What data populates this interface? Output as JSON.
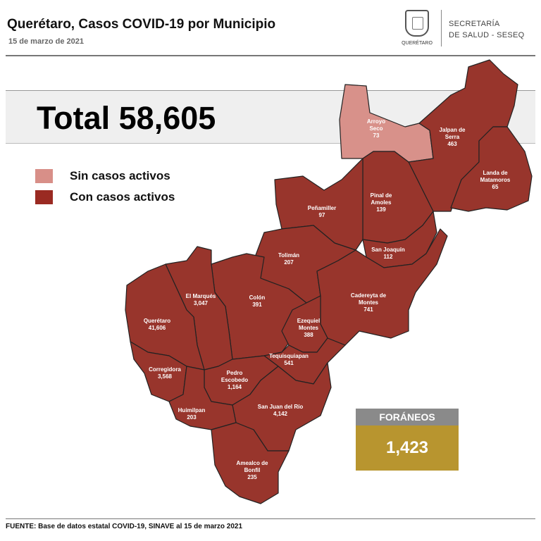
{
  "header": {
    "title": "Querétaro, Casos COVID-19 por Municipio",
    "date": "15 de marzo de 2021",
    "logo_text": "QUERÉTARO",
    "secretaria_line1": "SECRETARÍA",
    "secretaria_line2": "DE SALUD - SESEQ"
  },
  "total": "Total 58,605",
  "legend": [
    {
      "label": "Sin casos activos",
      "color": "#d88f88"
    },
    {
      "label": "Con casos activos",
      "color": "#9a2a22"
    }
  ],
  "colors": {
    "active": "#98352c",
    "inactive": "#d8918a",
    "border": "#222222",
    "foraneos_header": "#8a8a8a",
    "foraneos_value": "#b8952f"
  },
  "municipios": [
    {
      "name": "Arroyo Seco",
      "cases": "73",
      "active": false
    },
    {
      "name": "Jalpan de Serra",
      "cases": "463",
      "active": true
    },
    {
      "name": "Landa de Matamoros",
      "cases": "65",
      "active": true
    },
    {
      "name": "Pinal de Amoles",
      "cases": "139",
      "active": true
    },
    {
      "name": "Peñamiller",
      "cases": "97",
      "active": true
    },
    {
      "name": "Tolimán",
      "cases": "207",
      "active": true
    },
    {
      "name": "San Joaquín",
      "cases": "112",
      "active": true
    },
    {
      "name": "Cadereyta de Montes",
      "cases": "741",
      "active": true
    },
    {
      "name": "Colón",
      "cases": "391",
      "active": true
    },
    {
      "name": "El Marqués",
      "cases": "3,047",
      "active": true
    },
    {
      "name": "Querétaro",
      "cases": "41,606",
      "active": true
    },
    {
      "name": "Corregidora",
      "cases": "3,568",
      "active": true
    },
    {
      "name": "Ezequiel Montes",
      "cases": "388",
      "active": true
    },
    {
      "name": "Tequisquiapan",
      "cases": "541",
      "active": true
    },
    {
      "name": "Pedro Escobedo",
      "cases": "1,164",
      "active": true
    },
    {
      "name": "San Juan del Río",
      "cases": "4,142",
      "active": true
    },
    {
      "name": "Huimilpan",
      "cases": "203",
      "active": true
    },
    {
      "name": "Amealco de Bonfil",
      "cases": "235",
      "active": true
    }
  ],
  "foraneos": {
    "label": "FORÁNEOS",
    "value": "1,423"
  },
  "footer": "FUENTE: Base de datos estatal COVID-19, SINAVE al 15 de marzo 2021"
}
